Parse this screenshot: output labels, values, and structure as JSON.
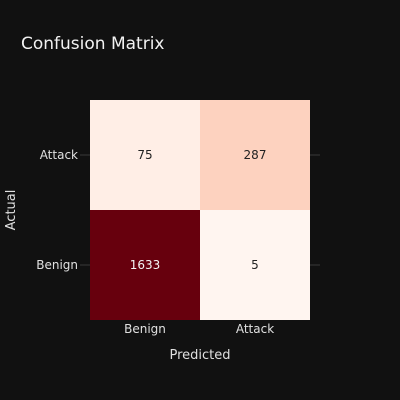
{
  "chart_data": {
    "type": "heatmap",
    "title": "Confusion Matrix",
    "xlabel": "Predicted",
    "ylabel": "Actual",
    "x_categories": [
      "Benign",
      "Attack"
    ],
    "y_categories_top_to_bottom": [
      "Attack",
      "Benign"
    ],
    "matrix_top_to_bottom": [
      [
        75,
        287
      ],
      [
        1633,
        5
      ]
    ],
    "colorscale": "Reds",
    "colorscale_range": [
      5,
      1633
    ],
    "colors": {
      "background": "#111111",
      "low": "#fff5f0",
      "high": "#67000d",
      "light_cell_text": "#222222",
      "dark_cell_text": "#f5f5f5",
      "tick_line": "#2c2c2c"
    },
    "grid": false,
    "legend": "none"
  }
}
